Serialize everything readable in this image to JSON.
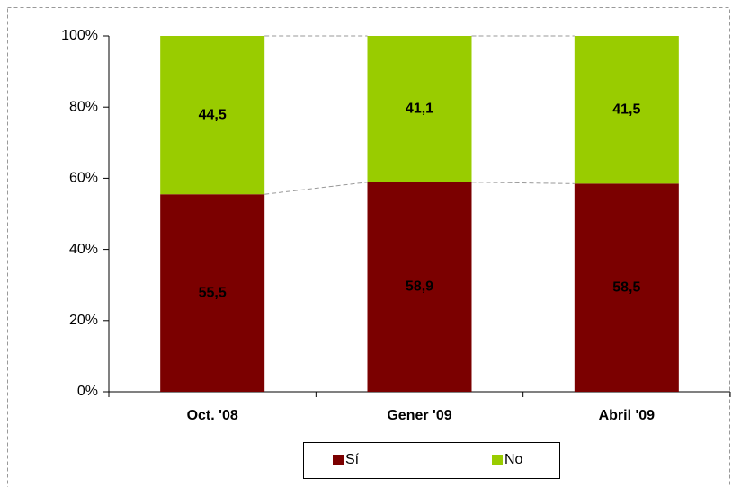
{
  "chart_data": {
    "type": "stacked_bar",
    "categories": [
      "Oct. '08",
      "Gener '09",
      "Abril '09"
    ],
    "series": [
      {
        "name": "Sí",
        "color": "#7b0000",
        "values": [
          55.5,
          58.9,
          58.5
        ],
        "value_labels": [
          "55,5",
          "58,9",
          "58,5"
        ]
      },
      {
        "name": "No",
        "color": "#99cc00",
        "values": [
          44.5,
          41.1,
          41.5
        ],
        "value_labels": [
          "44,5",
          "41,1",
          "41,5"
        ]
      }
    ],
    "ylim": [
      0,
      100
    ],
    "yticks": [
      {
        "value": 0,
        "label": "0%"
      },
      {
        "value": 20,
        "label": "20%"
      },
      {
        "value": 40,
        "label": "40%"
      },
      {
        "value": 60,
        "label": "60%"
      },
      {
        "value": 80,
        "label": "80%"
      },
      {
        "value": 100,
        "label": "100%"
      }
    ],
    "legend": "bottom"
  }
}
